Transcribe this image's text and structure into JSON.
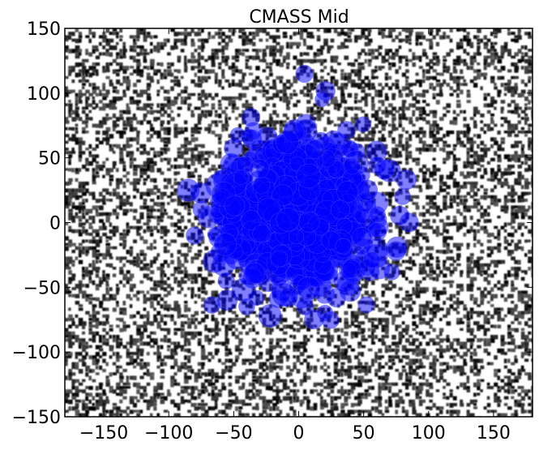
{
  "chart_data": {
    "type": "scatter",
    "title": "CMASS Mid",
    "xlabel": "",
    "ylabel": "",
    "xlim": [
      -180,
      180
    ],
    "ylim": [
      -150,
      150
    ],
    "x_ticks": [
      -150,
      -100,
      -50,
      0,
      50,
      100,
      150
    ],
    "y_ticks": [
      -150,
      -100,
      -50,
      0,
      50,
      100,
      150
    ],
    "x_tick_labels": [
      "−150",
      "−100",
      "−50",
      "0",
      "50",
      "100",
      "150"
    ],
    "y_tick_labels": [
      "−150",
      "−100",
      "−50",
      "0",
      "50",
      "100",
      "150"
    ],
    "grid": false,
    "legend": "none",
    "background_density": {
      "type": "heatmap",
      "cmap": "gray_r",
      "description_free": true
    },
    "series": [
      {
        "marker_color": "#0000ff",
        "marker_alpha": 0.5,
        "cluster_center": [
          0,
          5
        ],
        "cluster_spread": [
          30,
          28
        ],
        "points": [
          [
            18,
            95
          ],
          [
            20,
            58
          ],
          [
            -8,
            60
          ],
          [
            30,
            60
          ],
          [
            60,
            55
          ],
          [
            -52,
            45
          ],
          [
            -85,
            25
          ],
          [
            -75,
            10
          ],
          [
            -65,
            -30
          ],
          [
            -55,
            -60
          ],
          [
            -40,
            -65
          ],
          [
            -22,
            -72
          ],
          [
            5,
            -65
          ],
          [
            20,
            -55
          ],
          [
            38,
            -48
          ],
          [
            55,
            -38
          ],
          [
            75,
            -22
          ],
          [
            85,
            0
          ],
          [
            80,
            20
          ],
          [
            70,
            40
          ],
          [
            45,
            55
          ],
          [
            -30,
            55
          ],
          [
            -60,
            35
          ],
          [
            -80,
            -10
          ],
          [
            -5,
            40
          ],
          [
            10,
            20
          ],
          [
            -20,
            10
          ],
          [
            25,
            -10
          ],
          [
            -35,
            -20
          ],
          [
            0,
            0
          ],
          [
            40,
            10
          ],
          [
            -10,
            -35
          ],
          [
            15,
            35
          ],
          [
            -45,
            0
          ],
          [
            50,
            -15
          ],
          [
            30,
            30
          ],
          [
            -25,
            30
          ],
          [
            5,
            -20
          ],
          [
            60,
            15
          ],
          [
            -15,
            45
          ]
        ]
      }
    ]
  }
}
